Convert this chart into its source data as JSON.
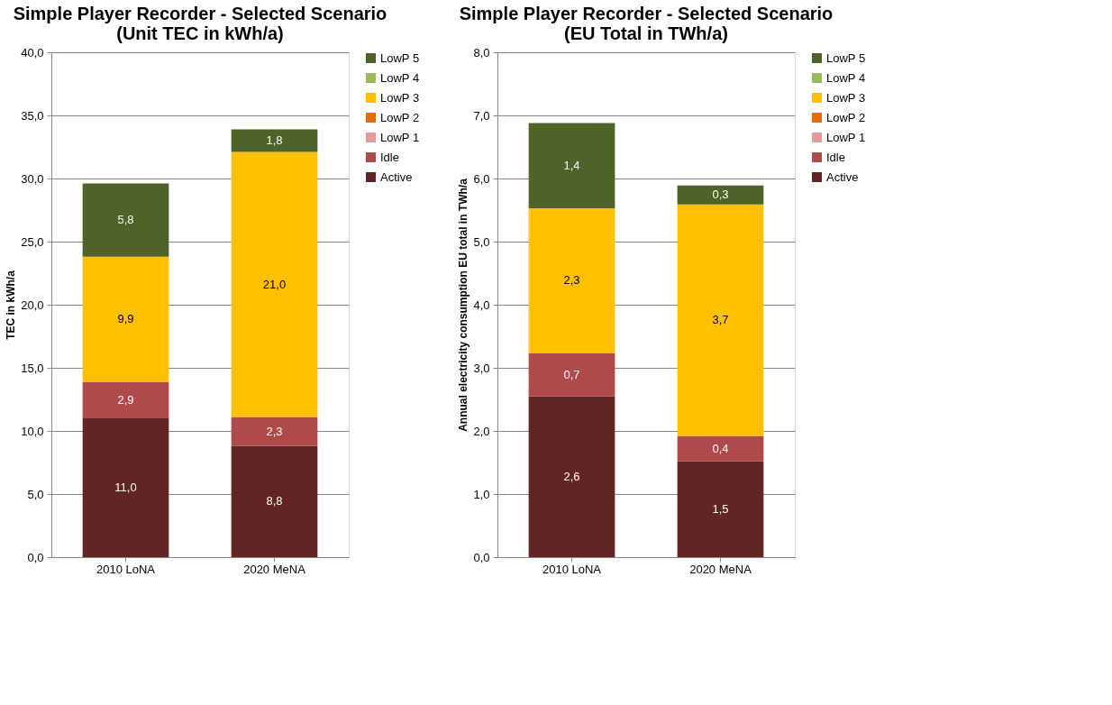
{
  "chart_data": [
    {
      "type": "bar",
      "stacked": true,
      "title": "Simple Player Recorder - Selected Scenario (Unit TEC in kWh/a)",
      "ylabel": "TEC in kWh/a",
      "categories": [
        "2010 LoNA",
        "2020 MeNA"
      ],
      "series": [
        {
          "name": "Active",
          "color": "#632523",
          "values": [
            11.0,
            8.8
          ],
          "value_labels": [
            "11,0",
            "8,8"
          ]
        },
        {
          "name": "Idle",
          "color": "#b04a4a",
          "values": [
            2.9,
            2.3
          ],
          "value_labels": [
            "2,9",
            "2,3"
          ]
        },
        {
          "name": "LowP 1",
          "color": "#e6999a",
          "values": [
            0,
            0
          ],
          "value_labels": [
            null,
            null
          ]
        },
        {
          "name": "LowP 2",
          "color": "#e46c0a",
          "values": [
            0,
            0
          ],
          "value_labels": [
            null,
            null
          ]
        },
        {
          "name": "LowP 3",
          "color": "#ffc000",
          "values": [
            9.9,
            21.0
          ],
          "value_labels": [
            "9,9",
            "21,0"
          ]
        },
        {
          "name": "LowP 4",
          "color": "#9bbb59",
          "values": [
            0,
            0
          ],
          "value_labels": [
            null,
            null
          ]
        },
        {
          "name": "LowP 5",
          "color": "#4f6228",
          "values": [
            5.8,
            1.8
          ],
          "value_labels": [
            "5,8",
            "1,8"
          ]
        }
      ],
      "ylim": [
        0,
        40
      ],
      "yticks": [
        {
          "value": 0,
          "label": "0,0"
        },
        {
          "value": 5,
          "label": "5,0"
        },
        {
          "value": 10,
          "label": "10,0"
        },
        {
          "value": 15,
          "label": "15,0"
        },
        {
          "value": 20,
          "label": "20,0"
        },
        {
          "value": 25,
          "label": "25,0"
        },
        {
          "value": 30,
          "label": "30,0"
        },
        {
          "value": 35,
          "label": "35,0"
        },
        {
          "value": 40,
          "label": "40,0"
        }
      ],
      "grid": "y",
      "legend": "right"
    },
    {
      "type": "bar",
      "stacked": true,
      "title": "Simple Player Recorder - Selected Scenario (EU Total in TWh/a)",
      "ylabel": "Annual electricity consumption EU total in TWh/a",
      "categories": [
        "2010 LoNA",
        "2020 MeNA"
      ],
      "series": [
        {
          "name": "Active",
          "color": "#632523",
          "values": [
            2.55,
            1.52
          ],
          "value_labels": [
            "2,6",
            "1,5"
          ]
        },
        {
          "name": "Idle",
          "color": "#b04a4a",
          "values": [
            0.68,
            0.4
          ],
          "value_labels": [
            "0,7",
            "0,4"
          ]
        },
        {
          "name": "LowP 1",
          "color": "#e6999a",
          "values": [
            0,
            0
          ],
          "value_labels": [
            null,
            null
          ]
        },
        {
          "name": "LowP 2",
          "color": "#e46c0a",
          "values": [
            0,
            0
          ],
          "value_labels": [
            null,
            null
          ]
        },
        {
          "name": "LowP 3",
          "color": "#ffc000",
          "values": [
            2.3,
            3.67
          ],
          "value_labels": [
            "2,3",
            "3,7"
          ]
        },
        {
          "name": "LowP 4",
          "color": "#9bbb59",
          "values": [
            0,
            0
          ],
          "value_labels": [
            null,
            null
          ]
        },
        {
          "name": "LowP 5",
          "color": "#4f6228",
          "values": [
            1.35,
            0.3
          ],
          "value_labels": [
            "1,4",
            "0,3"
          ]
        }
      ],
      "ylim": [
        0,
        8
      ],
      "yticks": [
        {
          "value": 0,
          "label": "0,0"
        },
        {
          "value": 1,
          "label": "1,0"
        },
        {
          "value": 2,
          "label": "2,0"
        },
        {
          "value": 3,
          "label": "3,0"
        },
        {
          "value": 4,
          "label": "4,0"
        },
        {
          "value": 5,
          "label": "5,0"
        },
        {
          "value": 6,
          "label": "6,0"
        },
        {
          "value": 7,
          "label": "7,0"
        },
        {
          "value": 8,
          "label": "8,0"
        }
      ],
      "grid": "y",
      "legend": "right"
    }
  ]
}
